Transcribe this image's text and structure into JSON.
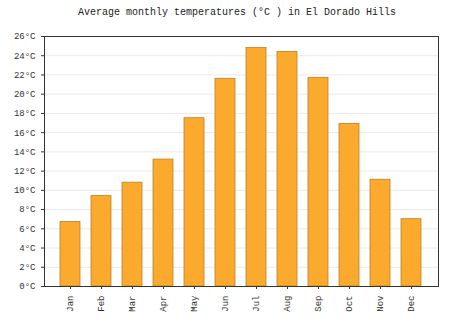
{
  "chart_data": {
    "type": "bar",
    "title": "Average monthly temperatures (°C ) in El Dorado Hills",
    "categories": [
      "Jan",
      "Feb",
      "Mar",
      "Apr",
      "May",
      "Jun",
      "Jul",
      "Aug",
      "Sep",
      "Oct",
      "Nov",
      "Dec"
    ],
    "values": [
      6.7,
      9.4,
      10.8,
      13.2,
      17.5,
      21.6,
      24.8,
      24.4,
      21.7,
      16.9,
      11.1,
      7.0
    ],
    "color": "#fbaa2e",
    "ylim": [
      0,
      26
    ],
    "yticks": [
      {
        "value": 0,
        "label": "0°C"
      },
      {
        "value": 2,
        "label": "2°C"
      },
      {
        "value": 4,
        "label": "4°C"
      },
      {
        "value": 6,
        "label": "6°C"
      },
      {
        "value": 8,
        "label": "8°C"
      },
      {
        "value": 10,
        "label": "10°C"
      },
      {
        "value": 12,
        "label": "12°C"
      },
      {
        "value": 14,
        "label": "14°C"
      },
      {
        "value": 16,
        "label": "16°C"
      },
      {
        "value": 18,
        "label": "18°C"
      },
      {
        "value": 20,
        "label": "20°C"
      },
      {
        "value": 22,
        "label": "22°C"
      },
      {
        "value": 24,
        "label": "24°C"
      },
      {
        "value": 26,
        "label": "26°C"
      }
    ],
    "grid": true
  }
}
